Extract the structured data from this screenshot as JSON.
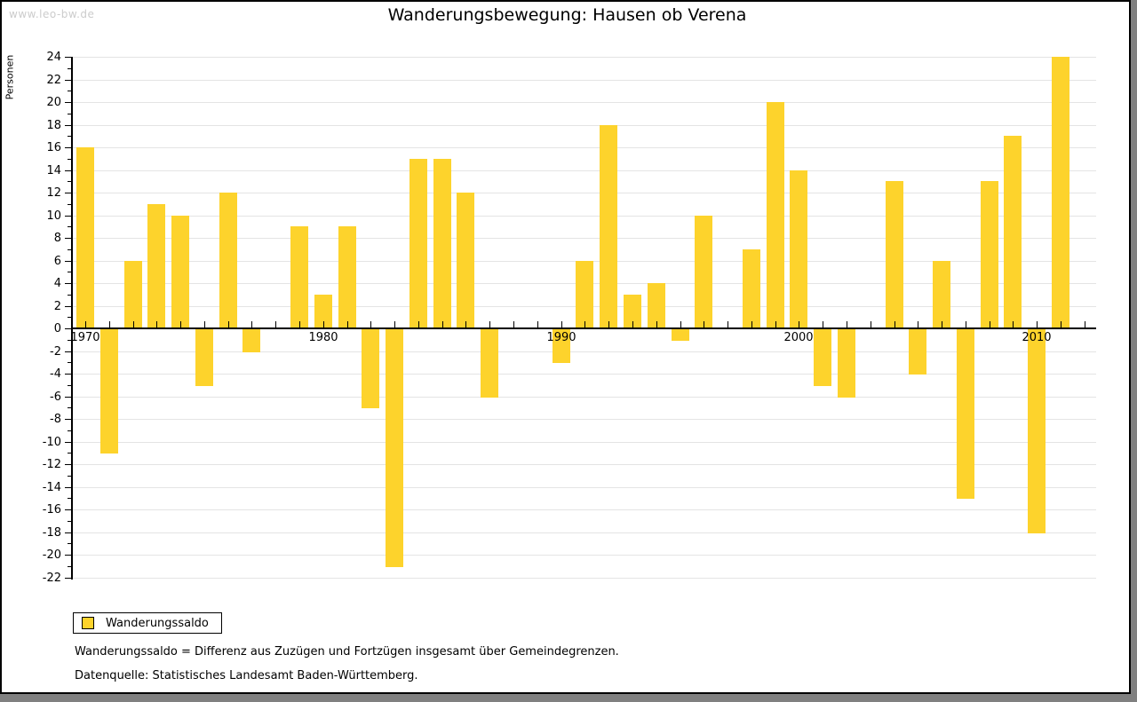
{
  "window": {
    "watermark": "www.leo-bw.de"
  },
  "title": "Wanderungsbewegung: Hausen ob Verena",
  "chart_data": {
    "type": "bar",
    "title": "Wanderungsbewegung: Hausen ob Verena",
    "xlabel": "",
    "ylabel": "Personen",
    "ylim": [
      -22,
      24
    ],
    "ytick_step": 2,
    "xtick_labels": [
      "1970",
      "1980",
      "1990",
      "2000",
      "2010"
    ],
    "grid": true,
    "legend_position": "bottom-left",
    "bar_color": "#FDD32C",
    "series": [
      {
        "name": "Wanderungssaldo",
        "x": [
          1970,
          1971,
          1972,
          1973,
          1974,
          1975,
          1976,
          1977,
          1978,
          1979,
          1980,
          1981,
          1982,
          1983,
          1984,
          1985,
          1986,
          1987,
          1988,
          1989,
          1990,
          1991,
          1992,
          1993,
          1994,
          1995,
          1996,
          1997,
          1998,
          1999,
          2000,
          2001,
          2002,
          2003,
          2004,
          2005,
          2006,
          2007,
          2008,
          2009,
          2010,
          2011
        ],
        "values": [
          16,
          -11,
          6,
          11,
          10,
          -5,
          12,
          -2,
          0,
          9,
          3,
          9,
          -7,
          -21,
          15,
          15,
          12,
          -6,
          0,
          0,
          -3,
          6,
          18,
          3,
          4,
          -1,
          10,
          0,
          7,
          20,
          14,
          -5,
          -6,
          0,
          13,
          -4,
          6,
          -15,
          13,
          17,
          -18,
          24
        ]
      }
    ]
  },
  "legend": {
    "label": "Wanderungssaldo",
    "swatch_color": "#FDD32C"
  },
  "footnotes": [
    "Wanderungssaldo = Differenz aus Zuzügen und Fortzügen insgesamt über Gemeindegrenzen.",
    "Datenquelle: Statistisches Landesamt Baden-Württemberg."
  ]
}
